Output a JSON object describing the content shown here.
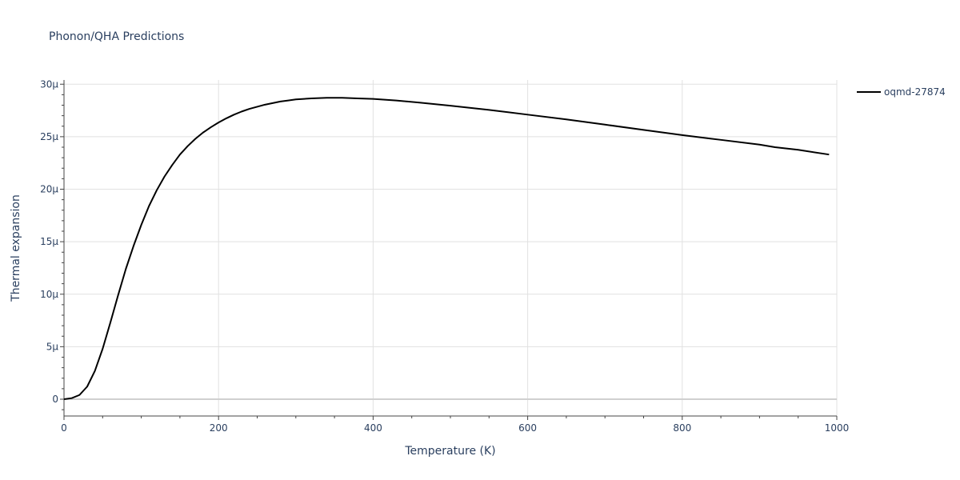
{
  "chart_data": {
    "type": "line",
    "title": "Phonon/QHA Predictions",
    "xlabel": "Temperature (K)",
    "ylabel": "Thermal expansion",
    "xlim": [
      0,
      1000
    ],
    "ylim": [
      -1.6e-06,
      3.04e-05
    ],
    "x_ticks": [
      0,
      200,
      400,
      600,
      800,
      1000
    ],
    "y_ticks": [
      {
        "value": 0,
        "label": "0"
      },
      {
        "value": 5e-06,
        "label": "5μ"
      },
      {
        "value": 1e-05,
        "label": "10μ"
      },
      {
        "value": 1.5e-05,
        "label": "15μ"
      },
      {
        "value": 2e-05,
        "label": "20μ"
      },
      {
        "value": 2.5e-05,
        "label": "25μ"
      },
      {
        "value": 3e-05,
        "label": "30μ"
      }
    ],
    "grid": true,
    "legend_position": "top-right",
    "series": [
      {
        "name": "oqmd-27874",
        "color": "#000000",
        "x": [
          0,
          10,
          20,
          30,
          40,
          50,
          60,
          70,
          80,
          90,
          100,
          110,
          120,
          130,
          140,
          150,
          160,
          170,
          180,
          190,
          200,
          210,
          220,
          230,
          240,
          250,
          260,
          270,
          280,
          290,
          300,
          320,
          340,
          360,
          380,
          400,
          430,
          460,
          500,
          550,
          600,
          650,
          700,
          750,
          800,
          850,
          900,
          920,
          950,
          990
        ],
        "y": [
          0,
          1e-07,
          4e-07,
          1.2e-06,
          2.7e-06,
          4.8e-06,
          7.3e-06,
          9.9e-06,
          1.24e-05,
          1.46e-05,
          1.66e-05,
          1.84e-05,
          1.99e-05,
          2.12e-05,
          2.23e-05,
          2.33e-05,
          2.41e-05,
          2.48e-05,
          2.54e-05,
          2.59e-05,
          2.635e-05,
          2.675e-05,
          2.71e-05,
          2.74e-05,
          2.765e-05,
          2.785e-05,
          2.805e-05,
          2.82e-05,
          2.835e-05,
          2.845e-05,
          2.855e-05,
          2.865e-05,
          2.87e-05,
          2.87e-05,
          2.865e-05,
          2.86e-05,
          2.845e-05,
          2.825e-05,
          2.795e-05,
          2.755e-05,
          2.71e-05,
          2.665e-05,
          2.615e-05,
          2.565e-05,
          2.515e-05,
          2.47e-05,
          2.425e-05,
          2.4e-05,
          2.375e-05,
          2.33e-05
        ]
      }
    ]
  }
}
